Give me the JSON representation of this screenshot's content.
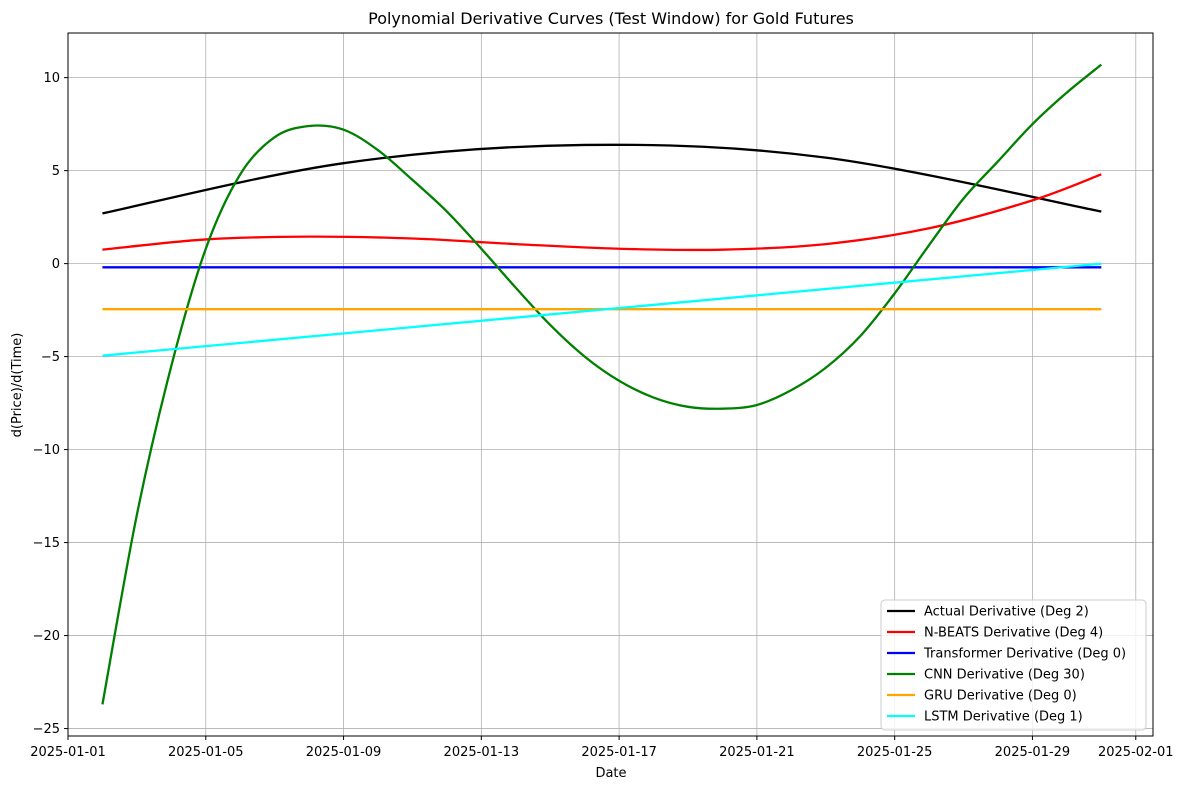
{
  "chart_data": {
    "type": "line",
    "title": "Polynomial Derivative Curves (Test Window) for Gold Futures",
    "xlabel": "Date",
    "ylabel": "d(Price)/d(Time)",
    "x_range": [
      "2025-01-02",
      "2025-01-31"
    ],
    "xlim": [
      "2025-01-01",
      "2025-02-01T12:00"
    ],
    "ylim": [
      -25.4,
      12.4
    ],
    "xticks": [
      "2025-01-01",
      "2025-01-05",
      "2025-01-09",
      "2025-01-13",
      "2025-01-17",
      "2025-01-21",
      "2025-01-25",
      "2025-01-29",
      "2025-02-01"
    ],
    "yticks": [
      10,
      5,
      0,
      -5,
      -10,
      -15,
      -20,
      -25
    ],
    "grid": true,
    "legend_position": "lower right",
    "series": [
      {
        "name": "Actual Derivative (Deg 2)",
        "color": "#000000",
        "x": [
          "2025-01-02",
          "2025-01-09",
          "2025-01-16",
          "2025-01-23",
          "2025-01-31"
        ],
        "y": [
          2.7,
          5.4,
          6.38,
          5.7,
          2.8
        ]
      },
      {
        "name": "N-BEATS Derivative (Deg 4)",
        "color": "#ff0000",
        "x": [
          "2025-01-02",
          "2025-01-05",
          "2025-01-08",
          "2025-01-11",
          "2025-01-14",
          "2025-01-17",
          "2025-01-20",
          "2025-01-23",
          "2025-01-26",
          "2025-01-29",
          "2025-01-31"
        ],
        "y": [
          0.75,
          1.3,
          1.45,
          1.35,
          1.05,
          0.8,
          0.75,
          1.05,
          1.9,
          3.4,
          4.8
        ]
      },
      {
        "name": "Transformer Derivative (Deg 0)",
        "color": "#0000ff",
        "x": [
          "2025-01-02",
          "2025-01-31"
        ],
        "y": [
          -0.2,
          -0.2
        ]
      },
      {
        "name": "CNN Derivative (Deg 30)",
        "color": "#008000",
        "x": [
          "2025-01-02",
          "2025-01-03",
          "2025-01-04",
          "2025-01-05",
          "2025-01-06",
          "2025-01-07",
          "2025-01-08",
          "2025-01-09",
          "2025-01-10",
          "2025-01-11",
          "2025-01-12",
          "2025-01-13",
          "2025-01-14",
          "2025-01-15",
          "2025-01-16",
          "2025-01-17",
          "2025-01-18",
          "2025-01-19",
          "2025-01-20",
          "2025-01-21",
          "2025-01-22",
          "2025-01-23",
          "2025-01-24",
          "2025-01-25",
          "2025-01-26",
          "2025-01-27",
          "2025-01-28",
          "2025-01-29",
          "2025-01-30",
          "2025-01-31"
        ],
        "y": [
          -23.7,
          -13.5,
          -5.5,
          0.8,
          4.8,
          6.8,
          7.4,
          7.2,
          6.1,
          4.5,
          2.8,
          0.8,
          -1.3,
          -3.3,
          -5.0,
          -6.3,
          -7.2,
          -7.7,
          -7.8,
          -7.6,
          -6.8,
          -5.6,
          -3.9,
          -1.6,
          1.0,
          3.5,
          5.5,
          7.5,
          9.2,
          10.7
        ]
      },
      {
        "name": "GRU Derivative (Deg 0)",
        "color": "#ffa500",
        "x": [
          "2025-01-02",
          "2025-01-31"
        ],
        "y": [
          -2.45,
          -2.45
        ]
      },
      {
        "name": "LSTM Derivative (Deg 1)",
        "color": "#00ffff",
        "x": [
          "2025-01-02",
          "2025-01-31"
        ],
        "y": [
          -4.95,
          0.0
        ]
      }
    ]
  }
}
